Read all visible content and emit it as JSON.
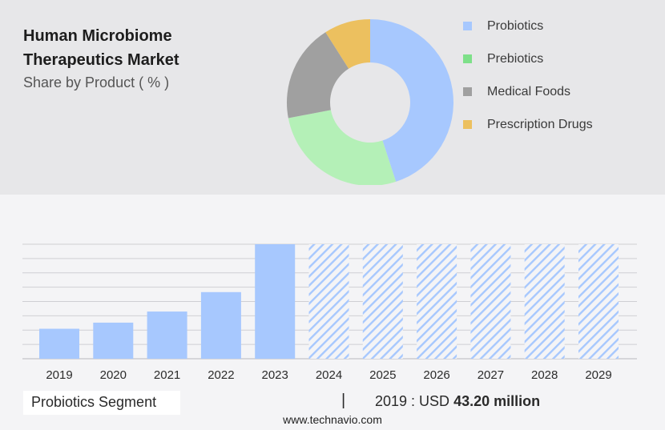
{
  "header": {
    "title": "Human Microbiome Therapeutics Market",
    "subtitle": "Share by Product ( % )"
  },
  "colors": {
    "probiotics": "#a7c8fe",
    "prebiotics": "#b4f0b7",
    "medical_foods": "#a0a0a0",
    "prescription_drugs": "#ecc05f",
    "legend_prebiotics": "#7ee089",
    "hatch": "#a7c8fe",
    "top_panel": "#e7e7e9",
    "grid": "#cfcfd3"
  },
  "chart_data": [
    {
      "type": "pie",
      "style": "donut",
      "title": "Share by Product ( % )",
      "slices": [
        {
          "label": "Probiotics",
          "value": 45
        },
        {
          "label": "Prebiotics",
          "value": 27
        },
        {
          "label": "Medical Foods",
          "value": 19
        },
        {
          "label": "Prescription Drugs",
          "value": 9
        }
      ],
      "legend_position": "right",
      "legend": [
        "Probiotics",
        "Prebiotics",
        "Medical Foods",
        "Prescription Drugs"
      ]
    },
    {
      "type": "bar",
      "title": "Probiotics Segment",
      "categories": [
        "2019",
        "2020",
        "2021",
        "2022",
        "2023",
        "2024",
        "2025",
        "2026",
        "2027",
        "2028",
        "2029"
      ],
      "values": [
        43.2,
        52,
        68,
        96,
        165,
        null,
        null,
        null,
        null,
        null,
        null
      ],
      "forecast_categories": [
        "2024",
        "2025",
        "2026",
        "2027",
        "2028",
        "2029"
      ],
      "forecast_style": "hatched",
      "ylim": [
        0,
        165
      ],
      "grid": true,
      "xlabel": "",
      "ylabel": ""
    }
  ],
  "footer": {
    "segment_label": "Probiotics Segment",
    "divider": "|",
    "value_prefix": "2019 : USD ",
    "value_highlight": "43.20 million",
    "url": "www.technavio.com"
  }
}
